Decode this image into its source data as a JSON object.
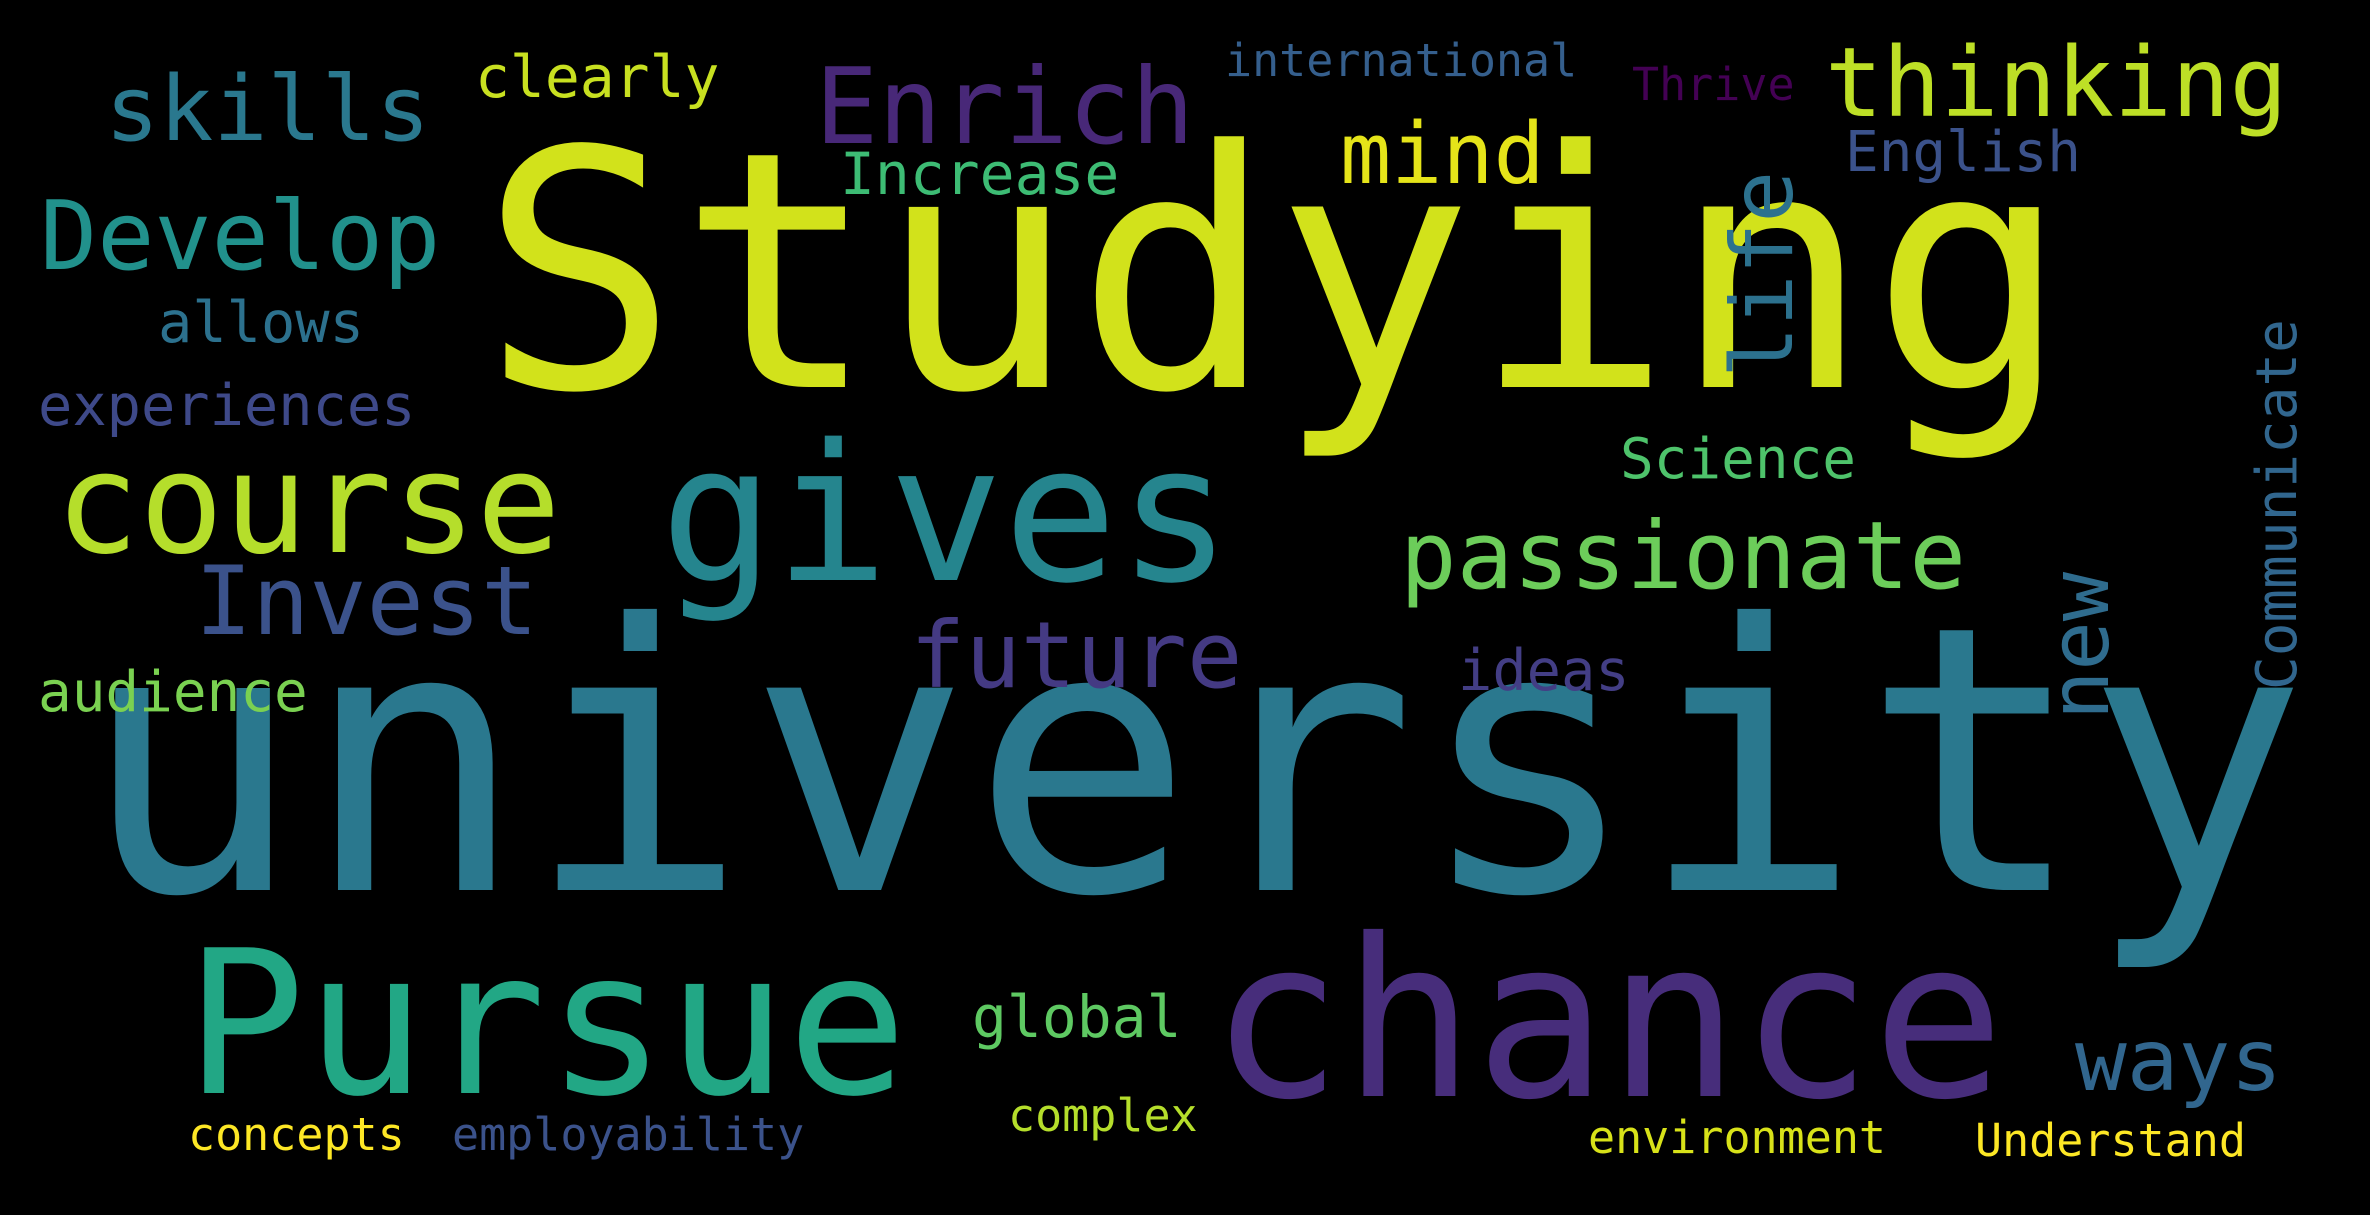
{
  "words": {
    "studying": {
      "text": "Studying",
      "color": "#d2e21b"
    },
    "university": {
      "text": "university",
      "color": "#2a788e"
    },
    "gives": {
      "text": "gives",
      "color": "#25858e"
    },
    "chance": {
      "text": "chance",
      "color": "#472d7b"
    },
    "pursue": {
      "text": "Pursue",
      "color": "#22a785"
    },
    "course": {
      "text": "course",
      "color": "#b5de2b"
    },
    "passionate": {
      "text": "passionate",
      "color": "#6ccd5a"
    },
    "thinking": {
      "text": "thinking",
      "color": "#bddf26"
    },
    "enrich": {
      "text": "Enrich",
      "color": "#482878"
    },
    "develop": {
      "text": "Develop",
      "color": "#21918c"
    },
    "skills": {
      "text": "skills",
      "color": "#2a788e"
    },
    "invest": {
      "text": "Invest",
      "color": "#3b528b"
    },
    "future": {
      "text": "future",
      "color": "#443a83"
    },
    "mind": {
      "text": "mind",
      "color": "#e5e419"
    },
    "life": {
      "text": "life",
      "color": "#2c718e"
    },
    "new": {
      "text": "new",
      "color": "#2f6c8e"
    },
    "ways": {
      "text": "ways",
      "color": "#31668e"
    },
    "communicate": {
      "text": "Communicate",
      "color": "#31668e"
    },
    "clearly": {
      "text": "clearly",
      "color": "#c8e020"
    },
    "international": {
      "text": "international",
      "color": "#355f8d"
    },
    "thrive": {
      "text": "Thrive",
      "color": "#440154"
    },
    "english": {
      "text": "English",
      "color": "#3b528b"
    },
    "increase": {
      "text": "Increase",
      "color": "#3dbc74"
    },
    "allows": {
      "text": "allows",
      "color": "#2c718e"
    },
    "experiences": {
      "text": "experiences",
      "color": "#3e4989"
    },
    "science": {
      "text": "Science",
      "color": "#4ec36b"
    },
    "ideas": {
      "text": "ideas",
      "color": "#433e85"
    },
    "audience": {
      "text": "audience",
      "color": "#7ad151"
    },
    "global": {
      "text": "global",
      "color": "#5ec962"
    },
    "complex": {
      "text": "complex",
      "color": "#b5de2b"
    },
    "concepts": {
      "text": "concepts",
      "color": "#fde725"
    },
    "employability": {
      "text": "employability",
      "color": "#3b528b"
    },
    "environment": {
      "text": "environment",
      "color": "#d8e219"
    },
    "understand": {
      "text": "Understand",
      "color": "#fde725"
    }
  }
}
